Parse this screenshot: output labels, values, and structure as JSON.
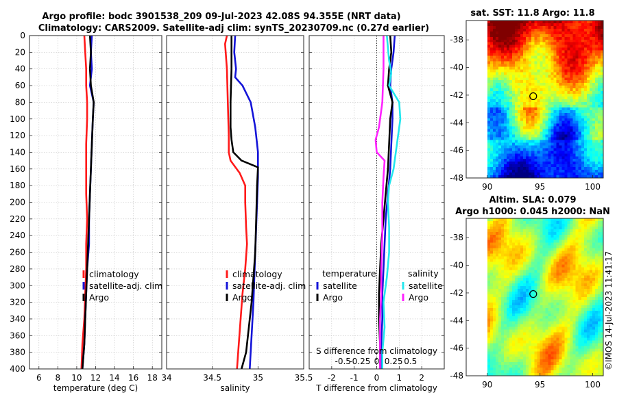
{
  "title": {
    "line1": "Argo profile: bodc 3901538_209 09-Jul-2023 42.08S 94.355E (NRT data)",
    "line2": "Climatology: CARS2009. Satellite-adj clim: synTS_20230709.nc (0.27d earlier)"
  },
  "credit": "©IMOS 14-Jul-2023 11:41:17",
  "colors": {
    "climatology": "#ff1a1a",
    "satellite": "#1414d8",
    "argo": "#000000",
    "sal_satellite": "#22e6ee",
    "sal_argo": "#ff22ff"
  },
  "chart_data": [
    {
      "type": "line",
      "name": "temperature",
      "xlabel": "temperature (deg C)",
      "ylabel": "",
      "xlim": [
        5,
        19
      ],
      "ylim": [
        0,
        400
      ],
      "xticks": [
        "6",
        "8",
        "10",
        "12",
        "14",
        "16",
        "18"
      ],
      "xtick_values": [
        6,
        8,
        10,
        12,
        14,
        16,
        18
      ],
      "yticks": [
        "0",
        "20",
        "40",
        "60",
        "80",
        "100",
        "120",
        "140",
        "160",
        "180",
        "200",
        "220",
        "240",
        "260",
        "280",
        "300",
        "320",
        "340",
        "360",
        "380",
        "400"
      ],
      "grid": true,
      "legend": [
        "climatology",
        "satellite-adj. clim",
        "Argo"
      ],
      "series": [
        {
          "name": "climatology",
          "color_key": "climatology",
          "x": [
            10.8,
            10.9,
            11.0,
            11.0,
            11.1,
            11.1,
            11.0,
            11.0,
            11.0,
            11.1,
            11.0,
            11.0,
            10.9,
            10.8,
            10.6,
            10.5
          ],
          "y": [
            0,
            20,
            40,
            60,
            80,
            100,
            130,
            160,
            190,
            220,
            250,
            280,
            310,
            340,
            370,
            400
          ]
        },
        {
          "name": "satellite-adj. clim",
          "color_key": "satellite",
          "x": [
            11.6,
            11.5,
            11.6,
            11.4,
            11.8,
            11.7,
            11.6,
            11.5,
            11.4,
            11.3,
            11.3,
            11.1,
            11.0,
            10.9,
            10.8,
            10.6
          ],
          "y": [
            0,
            20,
            40,
            60,
            80,
            100,
            130,
            160,
            190,
            220,
            250,
            280,
            310,
            340,
            370,
            400
          ]
        },
        {
          "name": "Argo",
          "color_key": "argo",
          "x": [
            11.4,
            11.5,
            11.4,
            11.5,
            11.8,
            11.7,
            11.6,
            11.5,
            11.4,
            11.3,
            11.2,
            11.1,
            11.0,
            10.9,
            10.8,
            10.6
          ],
          "y": [
            0,
            20,
            40,
            60,
            80,
            100,
            130,
            160,
            190,
            220,
            250,
            280,
            310,
            340,
            370,
            400
          ]
        }
      ]
    },
    {
      "type": "line",
      "name": "salinity",
      "xlabel": "salinity",
      "ylabel": "",
      "xlim": [
        34,
        35.5
      ],
      "ylim": [
        0,
        400
      ],
      "xticks": [
        "34",
        "34.5",
        "35",
        "35.5"
      ],
      "xtick_values": [
        34,
        34.5,
        35,
        35.5
      ],
      "grid": true,
      "legend": [
        "climatology",
        "satellite-adj. clim",
        "Argo"
      ],
      "series": [
        {
          "name": "climatology",
          "color_key": "climatology",
          "x": [
            34.66,
            34.64,
            34.66,
            34.67,
            34.68,
            34.68,
            34.7,
            34.8,
            34.86,
            34.86,
            34.87,
            34.88,
            34.86,
            34.83,
            34.81,
            34.79,
            34.77
          ],
          "y": [
            0,
            10,
            40,
            80,
            120,
            140,
            150,
            165,
            180,
            200,
            230,
            250,
            280,
            310,
            340,
            370,
            400
          ]
        },
        {
          "name": "satellite-adj. clim",
          "color_key": "satellite",
          "x": [
            34.75,
            34.74,
            34.76,
            34.75,
            34.83,
            34.92,
            34.97,
            35.0,
            35.0,
            34.99,
            34.98,
            34.97,
            34.96,
            34.95,
            34.93,
            34.91
          ],
          "y": [
            0,
            20,
            40,
            50,
            60,
            80,
            110,
            140,
            170,
            200,
            230,
            260,
            290,
            320,
            360,
            400
          ]
        },
        {
          "name": "Argo",
          "color_key": "argo",
          "x": [
            34.71,
            34.71,
            34.7,
            34.7,
            34.71,
            34.73,
            34.82,
            35.0,
            34.99,
            34.98,
            34.97,
            34.95,
            34.93,
            34.9,
            34.87,
            34.82
          ],
          "y": [
            0,
            40,
            80,
            110,
            125,
            140,
            150,
            158,
            180,
            220,
            260,
            290,
            320,
            350,
            380,
            400
          ]
        }
      ]
    },
    {
      "type": "line",
      "name": "difference",
      "xlabel": "T difference from climatology",
      "xlabel2": "S difference from climatology",
      "ylabel": "",
      "xlim": [
        -3,
        3
      ],
      "ylim": [
        0,
        400
      ],
      "xticks": [
        "-2",
        "-1",
        "0",
        "1",
        "2"
      ],
      "xtick_values": [
        -2,
        -1,
        0,
        1,
        2
      ],
      "sticks": [
        "-0.5",
        "-0.25",
        "0",
        "0.25",
        "0.5"
      ],
      "stick_values": [
        -1.5,
        -0.75,
        0,
        0.75,
        1.5
      ],
      "grid": true,
      "legend_temperature_title": "temperature",
      "legend_salinity_title": "salinity",
      "legend_temperature": [
        "satellite",
        "Argo"
      ],
      "legend_salinity": [
        "satellite",
        "Argo"
      ],
      "series": [
        {
          "name": "temperature satellite",
          "color_key": "satellite",
          "x": [
            0.8,
            0.75,
            0.65,
            0.6,
            0.7,
            0.7,
            0.65,
            0.6,
            0.5,
            0.4,
            0.35,
            0.3,
            0.25,
            0.25,
            0.2,
            0.2
          ],
          "y": [
            0,
            20,
            40,
            60,
            80,
            100,
            130,
            160,
            190,
            220,
            250,
            280,
            310,
            340,
            370,
            400
          ]
        },
        {
          "name": "temperature Argo",
          "color_key": "argo",
          "x": [
            0.6,
            0.65,
            0.55,
            0.5,
            0.7,
            0.6,
            0.55,
            0.5,
            0.4,
            0.3,
            0.2,
            0.15,
            0.1,
            0.1,
            0.15,
            0.15
          ],
          "y": [
            0,
            20,
            40,
            60,
            80,
            100,
            130,
            160,
            190,
            220,
            250,
            280,
            310,
            340,
            370,
            400
          ]
        },
        {
          "name": "salinity satellite",
          "color_key": "sal_satellite",
          "x": [
            0.45,
            0.5,
            0.55,
            0.65,
            0.55,
            1.0,
            1.05,
            0.9,
            0.75,
            0.55,
            0.5,
            0.55,
            0.55,
            0.45,
            0.3,
            0.35,
            0.25,
            0.25
          ],
          "y": [
            0,
            15,
            30,
            45,
            60,
            80,
            100,
            130,
            160,
            180,
            200,
            230,
            260,
            290,
            320,
            350,
            380,
            400
          ]
        },
        {
          "name": "salinity Argo",
          "color_key": "sal_argo",
          "x": [
            0.3,
            0.3,
            0.25,
            0.1,
            -0.05,
            0.0,
            0.35,
            0.3,
            0.25,
            0.25,
            0.2,
            0.2,
            0.15,
            0.15,
            0.15
          ],
          "y": [
            0,
            40,
            80,
            110,
            125,
            140,
            150,
            170,
            200,
            240,
            280,
            310,
            340,
            370,
            400
          ]
        }
      ]
    }
  ],
  "maps": [
    {
      "title": "sat. SST: 11.8 Argo: 11.8",
      "xlim": [
        88,
        101
      ],
      "ylim": [
        -48,
        -36.6
      ],
      "xticks": [
        "90",
        "95",
        "100"
      ],
      "xtick_values": [
        90,
        95,
        100
      ],
      "yticks": [
        "-38",
        "-40",
        "-42",
        "-44",
        "-46",
        "-48"
      ],
      "ytick_values": [
        -38,
        -40,
        -42,
        -44,
        -46,
        -48
      ],
      "data_x_start": 90,
      "marker": {
        "lon": 94.355,
        "lat": -42.08
      }
    },
    {
      "title": "Altim. SLA: 0.079",
      "subtitle": "Argo h1000: 0.045 h2000: NaN",
      "xlim": [
        88,
        101
      ],
      "ylim": [
        -48,
        -36.6
      ],
      "xticks": [
        "90",
        "95",
        "100"
      ],
      "xtick_values": [
        90,
        95,
        100
      ],
      "yticks": [
        "-38",
        "-40",
        "-42",
        "-44",
        "-46",
        "-48"
      ],
      "ytick_values": [
        -38,
        -40,
        -42,
        -44,
        -46,
        -48
      ],
      "data_x_start": 90,
      "marker": {
        "lon": 94.355,
        "lat": -42.08
      }
    }
  ]
}
